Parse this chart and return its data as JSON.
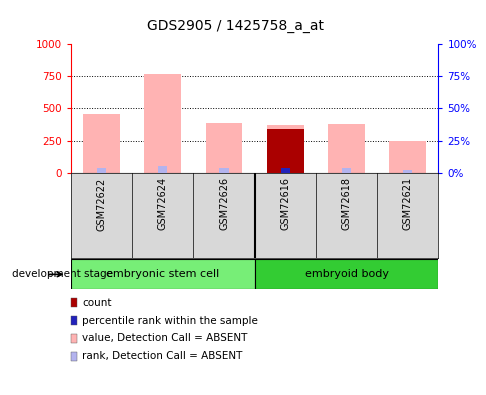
{
  "title": "GDS2905 / 1425758_a_at",
  "samples": [
    "GSM72622",
    "GSM72624",
    "GSM72626",
    "GSM72616",
    "GSM72618",
    "GSM72621"
  ],
  "pink_values": [
    460,
    770,
    390,
    370,
    380,
    245
  ],
  "blue_rank_values": [
    42,
    54,
    39,
    36,
    37,
    28
  ],
  "red_count_value": 340,
  "red_count_index": 3,
  "dark_blue_index": 3,
  "dark_blue_value": 36,
  "pink_color": "#ffb3b3",
  "blue_rank_color": "#b3b3ee",
  "red_count_color": "#aa0000",
  "dark_blue_color": "#2222bb",
  "left_ylim": [
    0,
    1000
  ],
  "right_ylim": [
    0,
    100
  ],
  "left_yticks": [
    0,
    250,
    500,
    750,
    1000
  ],
  "right_yticks": [
    0,
    25,
    50,
    75,
    100
  ],
  "left_yticklabels": [
    "0",
    "250",
    "500",
    "750",
    "1000"
  ],
  "right_yticklabels": [
    "0%",
    "25%",
    "50%",
    "75%",
    "100%"
  ],
  "bar_width": 0.6,
  "blue_bar_width": 0.15,
  "grid_lines": [
    250,
    500,
    750
  ],
  "group1_label": "embryonic stem cell",
  "group2_label": "embryoid body",
  "group1_indices": [
    0,
    1,
    2
  ],
  "group2_indices": [
    3,
    4,
    5
  ],
  "group1_color": "#77ee77",
  "group2_color": "#33cc33",
  "bg_color": "#d8d8d8",
  "legend_items": [
    {
      "color": "#aa0000",
      "label": "count"
    },
    {
      "color": "#2222bb",
      "label": "percentile rank within the sample"
    },
    {
      "color": "#ffb3b3",
      "label": "value, Detection Call = ABSENT"
    },
    {
      "color": "#b3b3ee",
      "label": "rank, Detection Call = ABSENT"
    }
  ],
  "development_stage_label": "development stage"
}
